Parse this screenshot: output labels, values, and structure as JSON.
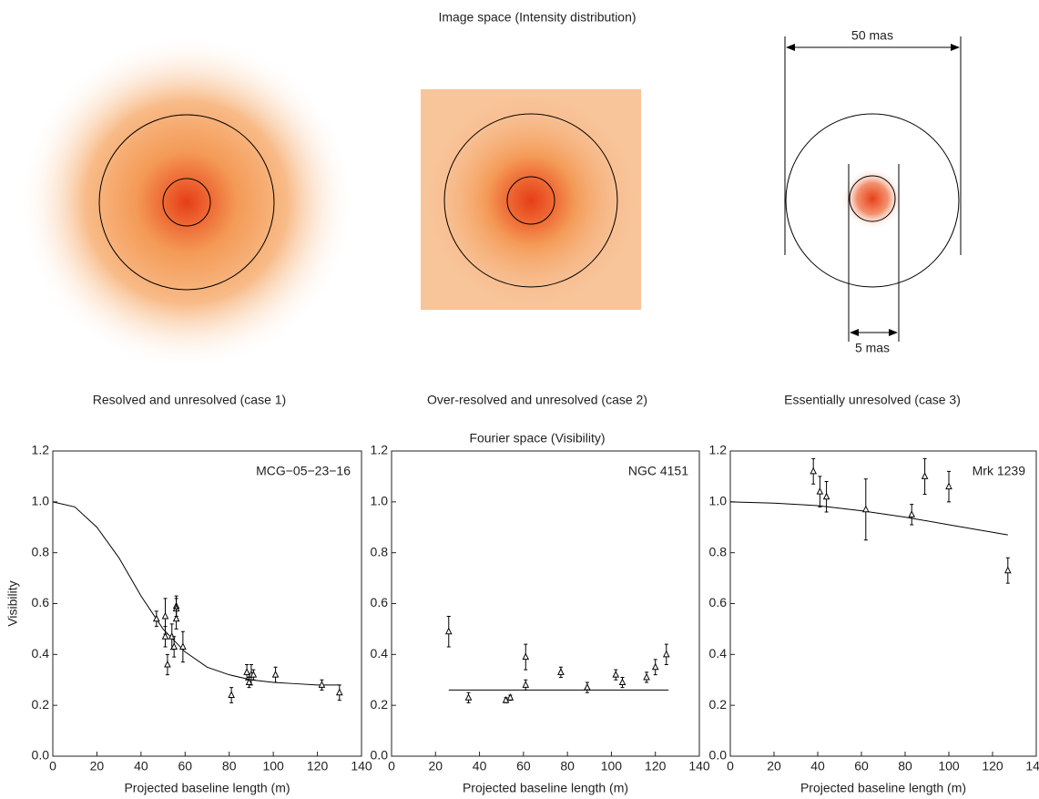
{
  "figure": {
    "image_title": "Image space (Intensity distribution)",
    "fourier_title": "Fourier space (Visibility)",
    "captions": [
      "Resolved and unresolved (case 1)",
      "Over-resolved and unresolved (case 2)",
      "Essentially unresolved (case 3)"
    ],
    "dimension_labels": [
      "50 mas",
      "5 mas"
    ]
  },
  "chart_data": [
    {
      "type": "scatter",
      "annotation": "MCG−05−23−16",
      "xlabel": "Projected baseline length (m)",
      "ylabel": "Visibility",
      "xlim": [
        0,
        140
      ],
      "ylim": [
        0,
        1.2
      ],
      "xticks": [
        0,
        20,
        40,
        60,
        80,
        100,
        120,
        140
      ],
      "yticks": [
        {
          "value": 0,
          "label": "0.0"
        },
        0.2,
        0.4,
        0.6,
        0.8,
        {
          "value": 1,
          "label": "1.0"
        },
        1.2
      ],
      "color": "#000000",
      "points": {
        "x": [
          47,
          51,
          51,
          52,
          54,
          55,
          56,
          56,
          56,
          59,
          81,
          88,
          89,
          90,
          91,
          101,
          122,
          130
        ],
        "values": [
          0.54,
          0.55,
          0.47,
          0.36,
          0.47,
          0.43,
          0.59,
          0.58,
          0.54,
          0.43,
          0.24,
          0.33,
          0.29,
          0.32,
          0.32,
          0.32,
          0.28,
          0.25
        ],
        "errors": [
          0.03,
          0.07,
          0.04,
          0.04,
          0.05,
          0.04,
          0.04,
          0.04,
          0.04,
          0.06,
          0.03,
          0.03,
          0.02,
          0.04,
          0.02,
          0.03,
          0.02,
          0.03
        ]
      },
      "model": {
        "x": [
          0,
          10,
          20,
          30,
          40,
          50,
          60,
          70,
          80,
          90,
          100,
          110,
          120,
          130
        ],
        "values": [
          1.0,
          0.98,
          0.9,
          0.78,
          0.63,
          0.5,
          0.41,
          0.35,
          0.32,
          0.3,
          0.29,
          0.285,
          0.28,
          0.28
        ]
      }
    },
    {
      "type": "scatter",
      "annotation": "NGC 4151",
      "xlabel": "Projected baseline length (m)",
      "xlim": [
        0,
        140
      ],
      "ylim": [
        0,
        1.2
      ],
      "xticks": [
        0,
        20,
        40,
        60,
        80,
        100,
        120,
        140
      ],
      "yticks": [
        {
          "value": 0,
          "label": "0.0"
        },
        0.2,
        0.4,
        0.6,
        0.8,
        {
          "value": 1,
          "label": "1.0"
        },
        1.2
      ],
      "color": "#000000",
      "points": {
        "x": [
          26,
          35,
          52,
          54,
          61,
          61,
          77,
          89,
          102,
          105,
          116,
          120,
          125
        ],
        "values": [
          0.49,
          0.23,
          0.22,
          0.23,
          0.39,
          0.28,
          0.33,
          0.27,
          0.32,
          0.29,
          0.31,
          0.35,
          0.4
        ],
        "errors": [
          0.06,
          0.02,
          0.01,
          0.01,
          0.05,
          0.02,
          0.02,
          0.02,
          0.02,
          0.02,
          0.02,
          0.03,
          0.04
        ]
      },
      "model": {
        "x": [
          26,
          126
        ],
        "values": [
          0.26,
          0.26
        ]
      }
    },
    {
      "type": "scatter",
      "annotation": "Mrk 1239",
      "xlabel": "Projected baseline length (m)",
      "xlim": [
        0,
        140
      ],
      "ylim": [
        0,
        1.2
      ],
      "xticks": [
        0,
        20,
        40,
        60,
        80,
        100,
        120,
        140
      ],
      "yticks": [
        {
          "value": 0,
          "label": "0.0"
        },
        0.2,
        0.4,
        0.6,
        0.8,
        {
          "value": 1,
          "label": "1.0"
        },
        1.2
      ],
      "color": "#000000",
      "points": {
        "x": [
          38,
          41,
          44,
          62,
          83,
          89,
          100,
          127
        ],
        "values": [
          1.12,
          1.04,
          1.02,
          0.97,
          0.95,
          1.1,
          1.06,
          0.73
        ],
        "errors": [
          0.05,
          0.06,
          0.06,
          0.12,
          0.04,
          0.07,
          0.06,
          0.05
        ]
      },
      "model": {
        "x": [
          0,
          20,
          40,
          60,
          80,
          100,
          127
        ],
        "values": [
          1.0,
          0.995,
          0.985,
          0.965,
          0.94,
          0.91,
          0.87
        ]
      }
    }
  ]
}
